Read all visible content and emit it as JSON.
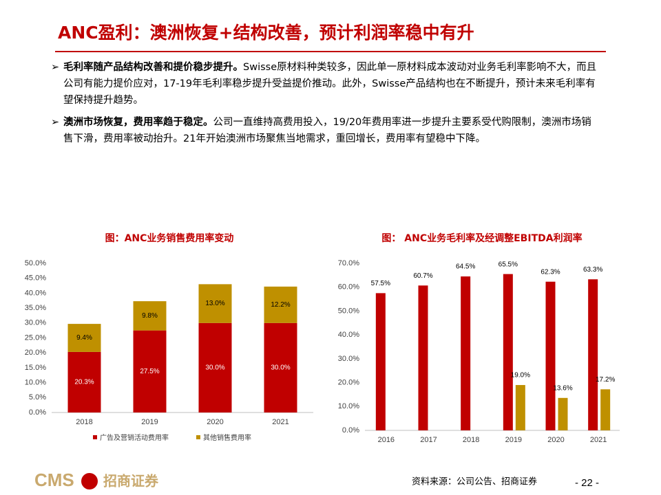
{
  "header": {
    "title": "ANC盈利：澳洲恢复+结构改善，预计利润率稳中有升"
  },
  "bullets": [
    {
      "lead": "毛利率随产品结构改善和提价稳步提升。",
      "text": "Swisse原材料种类较多，因此单一原材料成本波动对业务毛利率影响不大，而且公司有能力提价应对，17-19年毛利率稳步提升受益提价推动。此外，Swisse产品结构也在不断提升，预计未来毛利率有望保持提升趋势。"
    },
    {
      "lead": "澳洲市场恢复，费用率趋于稳定。",
      "text": "公司一直维持高费用投入，19/20年费用率进一步提升主要系受代购限制，澳洲市场销售下滑，费用率被动抬升。21年开始澳洲市场聚焦当地需求，重回增长，费用率有望稳中下降。"
    }
  ],
  "chart_data": [
    {
      "type": "stacked_bar",
      "title": "图：ANC业务销售费用率变动",
      "categories": [
        "2018",
        "2019",
        "2020",
        "2021"
      ],
      "series": [
        {
          "name": "广告及营销活动费用率",
          "color": "#c00000",
          "values": [
            20.3,
            27.5,
            30.0,
            30.0
          ],
          "value_labels": [
            "20.3%",
            "27.5%",
            "30.0%",
            "30.0%"
          ]
        },
        {
          "name": "其他销售费用率",
          "color": "#bf9000",
          "values": [
            9.4,
            9.8,
            13.0,
            12.2
          ],
          "value_labels": [
            "9.4%",
            "9.8%",
            "13.0%",
            "12.2%"
          ]
        }
      ],
      "ylim": [
        0,
        50
      ],
      "yticks": [
        {
          "value": 0,
          "label": "0.0%"
        },
        {
          "value": 5,
          "label": "5.0%"
        },
        {
          "value": 10,
          "label": "10.0%"
        },
        {
          "value": 15,
          "label": "15.0%"
        },
        {
          "value": 20,
          "label": "20.0%"
        },
        {
          "value": 25,
          "label": "25.0%"
        },
        {
          "value": 30,
          "label": "30.0%"
        },
        {
          "value": 35,
          "label": "35.0%"
        },
        {
          "value": 40,
          "label": "40.0%"
        },
        {
          "value": 45,
          "label": "45.0%"
        },
        {
          "value": 50,
          "label": "50.0%"
        }
      ],
      "legend": "bottom"
    },
    {
      "type": "grouped_bar",
      "title": "图： ANC业务毛利率及经调整EBITDA利润率",
      "categories": [
        "2016",
        "2017",
        "2018",
        "2019",
        "2020",
        "2021"
      ],
      "series": [
        {
          "color": "#c00000",
          "values": [
            57.5,
            60.7,
            64.5,
            65.5,
            62.3,
            63.3
          ],
          "value_labels": [
            "57.5%",
            "60.7%",
            "64.5%",
            "65.5%",
            "62.3%",
            "63.3%"
          ]
        },
        {
          "color": "#bf9000",
          "values": [
            null,
            null,
            null,
            19.0,
            13.6,
            17.2
          ],
          "value_labels": [
            null,
            null,
            null,
            "19.0%",
            "13.6%",
            "17.2%"
          ]
        }
      ],
      "ylim": [
        0,
        70
      ],
      "yticks": [
        {
          "value": 0,
          "label": "0.0%"
        },
        {
          "value": 10,
          "label": "10.0%"
        },
        {
          "value": 20,
          "label": "20.0%"
        },
        {
          "value": 30,
          "label": "30.0%"
        },
        {
          "value": 40,
          "label": "40.0%"
        },
        {
          "value": 50,
          "label": "50.0%"
        },
        {
          "value": 60,
          "label": "60.0%"
        },
        {
          "value": 70,
          "label": "70.0%"
        }
      ]
    }
  ],
  "footer": {
    "logo": "CMS",
    "logo_cn": "招商证券",
    "source": "资料来源：公司公告、招商证券",
    "page": "- 22 -"
  }
}
